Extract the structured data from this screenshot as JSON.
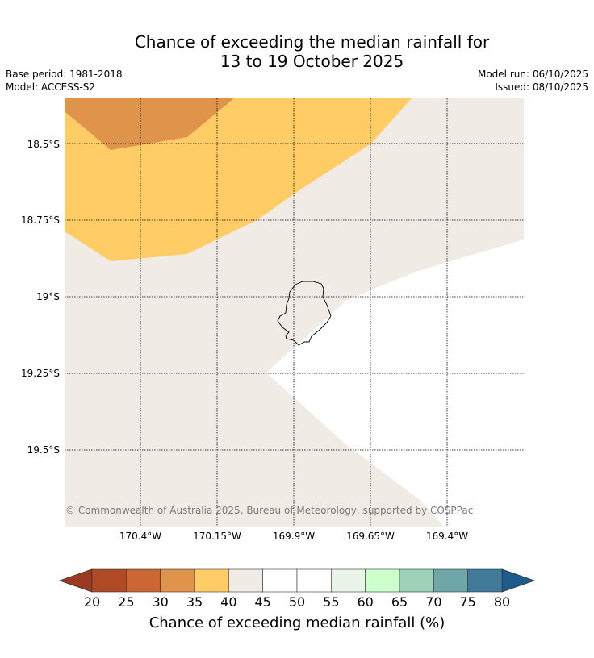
{
  "header": {
    "title_line1": "Chance of exceeding the median rainfall for",
    "title_line2": "13 to 19 October 2025",
    "base_period": "Base period: 1981-2018",
    "model": "Model: ACCESS-S2",
    "model_run": "Model run: 06/10/2025",
    "issued": "Issued: 08/10/2025"
  },
  "map": {
    "latitude_labels": [
      "18.5°S",
      "18.75°S",
      "19°S",
      "19.25°S",
      "19.5°S"
    ],
    "longitude_labels": [
      "170.4°W",
      "170.15°W",
      "169.9°W",
      "169.65°W",
      "169.4°W"
    ],
    "copyright": "© Commonwealth of Australia 2025, Bureau of Meteorology, supported by COSPPac",
    "colors": {
      "band_30_35": "#e0934a",
      "band_35_40": "#ffcc66",
      "band_40_45": "#f0ebe5",
      "band_45_55": "#ffffff",
      "coastline": "#000000"
    }
  },
  "colorbar": {
    "ticks": [
      "20",
      "25",
      "30",
      "35",
      "40",
      "45",
      "50",
      "55",
      "60",
      "65",
      "70",
      "75",
      "80"
    ],
    "label": "Chance of exceeding median rainfall (%)",
    "colors": [
      "#b04a25",
      "#cc6633",
      "#e0934a",
      "#ffcc66",
      "#f0ebe5",
      "#ffffff",
      "#ffffff",
      "#eaf5ea",
      "#ccffcc",
      "#9dd1b8",
      "#6fa7a8",
      "#427b99"
    ],
    "low_extend_color": "#9b3a20",
    "high_extend_color": "#1f5a8c"
  }
}
